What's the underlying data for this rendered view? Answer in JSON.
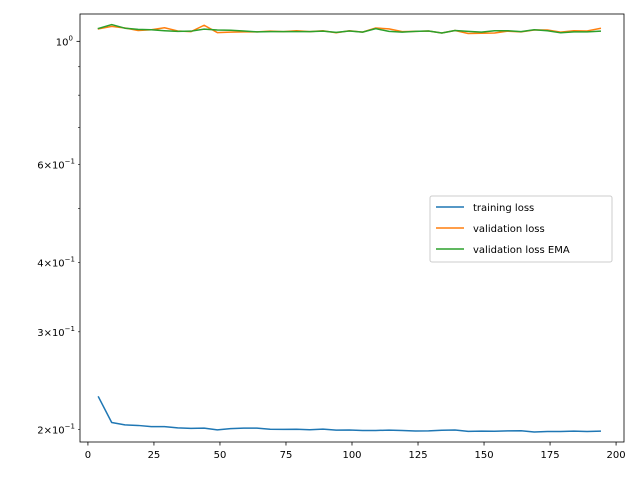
{
  "chart_data": {
    "type": "line",
    "title": "",
    "xlabel": "",
    "ylabel": "",
    "yscale": "log",
    "xlim": [
      -3,
      203
    ],
    "ylim": [
      0.19,
      1.12
    ],
    "xticks": [
      0,
      25,
      50,
      75,
      100,
      125,
      150,
      175,
      200
    ],
    "xtick_labels": [
      "0",
      "25",
      "50",
      "75",
      "100",
      "125",
      "150",
      "175",
      "200"
    ],
    "yticks_major": [
      {
        "value": 1.0,
        "label": "10^0",
        "base": "10",
        "exp": "0"
      }
    ],
    "yticks_minor": [
      {
        "value": 0.2,
        "coef": "2",
        "base": "10",
        "exp": "−1"
      },
      {
        "value": 0.3,
        "coef": "3",
        "base": "10",
        "exp": "−1"
      },
      {
        "value": 0.4,
        "coef": "4",
        "base": "10",
        "exp": "−1"
      },
      {
        "value": 0.6,
        "coef": "6",
        "base": "10",
        "exp": "−1"
      }
    ],
    "yticks_minor_unlabeled": [
      0.5,
      0.7,
      0.8,
      0.9
    ],
    "times_sign": "×",
    "x": [
      4,
      9,
      14,
      19,
      24,
      29,
      34,
      39,
      44,
      49,
      54,
      59,
      64,
      69,
      74,
      79,
      84,
      89,
      94,
      99,
      104,
      109,
      114,
      119,
      124,
      129,
      134,
      139,
      144,
      149,
      154,
      159,
      164,
      169,
      174,
      179,
      184,
      189,
      194
    ],
    "series": [
      {
        "name": "training loss",
        "color": "#1f77b4",
        "values": [
          0.229,
          0.206,
          0.204,
          0.2035,
          0.2025,
          0.2025,
          0.2015,
          0.201,
          0.2012,
          0.1998,
          0.2008,
          0.2012,
          0.2012,
          0.2003,
          0.2002,
          0.2003,
          0.1999,
          0.2004,
          0.1996,
          0.1997,
          0.1993,
          0.1993,
          0.1996,
          0.1993,
          0.1989,
          0.199,
          0.1995,
          0.1997,
          0.1986,
          0.1988,
          0.1987,
          0.199,
          0.1991,
          0.198,
          0.1985,
          0.1985,
          0.1988,
          0.1985,
          0.1987
        ]
      },
      {
        "name": "validation loss",
        "color": "#ff7f0e",
        "values": [
          1.053,
          1.064,
          1.057,
          1.046,
          1.049,
          1.058,
          1.044,
          1.041,
          1.069,
          1.037,
          1.039,
          1.04,
          1.04,
          1.043,
          1.041,
          1.045,
          1.041,
          1.045,
          1.036,
          1.045,
          1.039,
          1.057,
          1.053,
          1.041,
          1.042,
          1.044,
          1.035,
          1.046,
          1.033,
          1.034,
          1.035,
          1.043,
          1.04,
          1.048,
          1.048,
          1.039,
          1.045,
          1.044,
          1.055
        ]
      },
      {
        "name": "validation loss EMA",
        "color": "#2ca02c",
        "values": [
          1.055,
          1.072,
          1.056,
          1.051,
          1.049,
          1.045,
          1.042,
          1.043,
          1.052,
          1.048,
          1.047,
          1.044,
          1.04,
          1.041,
          1.041,
          1.041,
          1.041,
          1.043,
          1.038,
          1.044,
          1.039,
          1.054,
          1.042,
          1.039,
          1.042,
          1.044,
          1.035,
          1.046,
          1.042,
          1.039,
          1.045,
          1.045,
          1.041,
          1.049,
          1.045,
          1.036,
          1.04,
          1.04,
          1.043
        ]
      }
    ],
    "legend_location": "center-right",
    "grid": false
  }
}
